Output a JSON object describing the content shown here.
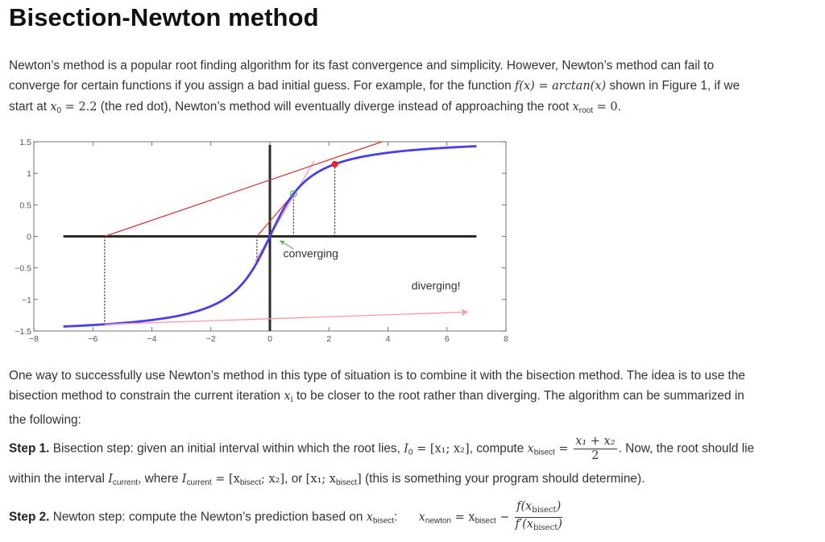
{
  "title": "Bisection-Newton method",
  "intro": {
    "l1": "Newton’s method is a popular root finding algorithm for its fast convergence and simplicity. However, Newton’s method can fail to",
    "l2a": "converge for certain functions if you assign a bad initial guess. For example, for the function ",
    "l2_math": "f(x) = arctan(x)",
    "l2b": " shown in Figure 1, if we",
    "l3a": "start at ",
    "l3_math1": "x",
    "l3_sub1": "0",
    "l3_math1b": " = 2.2",
    "l3b": " (the red dot), Newton’s method will eventually diverge instead of approaching the root ",
    "l3_math2": "x",
    "l3_sub2": "root",
    "l3_math2b": " = 0",
    "l3c": "."
  },
  "chart_data": {
    "type": "line",
    "xlim": [
      -8,
      8
    ],
    "ylim": [
      -1.5,
      1.5
    ],
    "x_ticks": [
      "−8",
      "−6",
      "−4",
      "−2",
      "0",
      "2",
      "4",
      "6",
      "8"
    ],
    "y_ticks": [
      "1.5",
      "1",
      "0.5",
      "0",
      "−0.5",
      "−1",
      "−1.5"
    ],
    "grid": false,
    "series": [
      {
        "function": "arctan(x)",
        "x_range": [
          -7,
          7
        ],
        "color": "#4a3ee8"
      }
    ],
    "diverging_tangents": [
      {
        "from": [
          2.2,
          1.144
        ],
        "to": [
          -5.6,
          0
        ],
        "extend_to": [
          3.8,
          1.5
        ]
      },
      {
        "from": [
          -5.6,
          -1.394
        ],
        "to": [
          6.7,
          -1.2
        ]
      }
    ],
    "converging_tangents": [
      {
        "from": [
          0.8,
          0.675
        ],
        "to": [
          -0.44,
          0
        ]
      },
      {
        "from": [
          1.5,
          1.2
        ],
        "to": [
          -0.5,
          -0.4
        ]
      }
    ],
    "dotted_lines_x": [
      -5.6,
      -0.44,
      0.8,
      2.2
    ],
    "red_point": [
      2.2,
      1.144
    ],
    "green_point": [
      0.8,
      0.675
    ],
    "annotations": {
      "converging": "converging",
      "diverging": "diverging!"
    },
    "colors": {
      "curve": "#4a3ee8",
      "tangent_red": "#cc3333",
      "tangent_pink": "#f59aa5",
      "axis": "#2b2b2b",
      "red_dot": "#e8262a",
      "green_circle": "#4caf50"
    }
  },
  "para2": {
    "l1": "One way to successfully use Newton’s method in this type of situation is to combine it with the bisection method. The idea is to use the",
    "l2a": "bisection method to constrain the current iteration ",
    "l2_math": "x",
    "l2_sub": "i",
    "l2b": " to be closer to the root rather than diverging. The algorithm can be summarized in",
    "l3": "the following:"
  },
  "step1": {
    "label": "Step 1.",
    "t1": " Bisection step: given an initial interval within which the root lies, ",
    "m1": "I",
    "m1_sub": "0",
    "m1_rest": " = [x₁; x₂]",
    "t2": ", compute ",
    "m2": "x",
    "m2_sub": "bisect",
    "m2_eq": " = ",
    "frac_num": "x₁ + x₂",
    "frac_den": "2",
    "t3": ". Now, the root should lie",
    "l2a": "within the interval ",
    "m3": "I",
    "m3_sub": "current",
    "t4": ", where ",
    "m4": "I",
    "m4_sub": "current",
    "m4_rest": " = [x",
    "m4_sub2": "bisect",
    "m4_rest2": "; x₂]",
    "t5": ", or ",
    "m5": "[x₁; x",
    "m5_sub": "bisect",
    "m5_rest": "]",
    "t6": " (this is something your program should determine)."
  },
  "step2": {
    "label": "Step 2.",
    "t1": " Newton step: compute the Newton’s prediction based on ",
    "m1": "x",
    "m1_sub": "bisect",
    "colon": ":",
    "m2": "x",
    "m2_sub": "newton",
    "m2_eq": " = x",
    "m2_sub2": "bisect",
    "m2_minus": " − ",
    "num_a": "f(x",
    "num_sub": "bisect",
    "num_b": ")",
    "den_a": "f′(x",
    "den_sub": "bisect",
    "den_b": ")"
  }
}
